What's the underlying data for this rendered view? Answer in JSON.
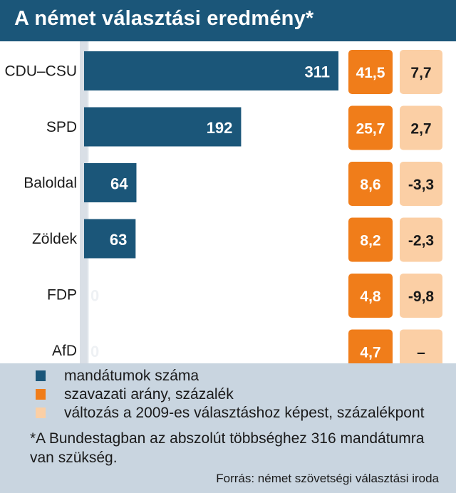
{
  "title": "A német választási eredmény*",
  "colors": {
    "header_bg": "#1b5679",
    "seats": "#1b5679",
    "vote_share": "#f07d1a",
    "change": "#fbcfa5",
    "legend_bg": "#c9d5e0"
  },
  "chart_data": {
    "type": "bar",
    "categories": [
      "CDU–CSU",
      "SPD",
      "Baloldal",
      "Zöldek",
      "FDP",
      "AfD"
    ],
    "series": [
      {
        "name": "mandátumok száma",
        "values": [
          311,
          192,
          64,
          63,
          0,
          0
        ]
      },
      {
        "name": "szavazati arány, százalék",
        "values": [
          41.5,
          25.7,
          8.6,
          8.2,
          4.8,
          4.7
        ]
      },
      {
        "name": "változás a 2009-es választáshoz képest, százalékpont",
        "values": [
          7.7,
          2.7,
          -3.3,
          -2.3,
          -9.8,
          null
        ]
      }
    ],
    "seat_labels": [
      "311",
      "192",
      "64",
      "63",
      "0",
      "0"
    ],
    "share_labels": [
      "41,5",
      "25,7",
      "8,6",
      "8,2",
      "4,8",
      "4,7"
    ],
    "change_labels": [
      "7,7",
      "2,7",
      "-3,3",
      "-2,3",
      "-9,8",
      "–"
    ]
  },
  "legend": [
    {
      "label": "mandátumok száma",
      "color": "#1b5679"
    },
    {
      "label": "szavazati arány, százalék",
      "color": "#f07d1a"
    },
    {
      "label": "változás a 2009-es választáshoz képest, százalékpont",
      "color": "#fbcfa5"
    }
  ],
  "footnote": "*A Bundestagban az abszolút többséghez 316 mandátumra van szükség.",
  "source": "Forrás: német szövetségi választási iroda"
}
